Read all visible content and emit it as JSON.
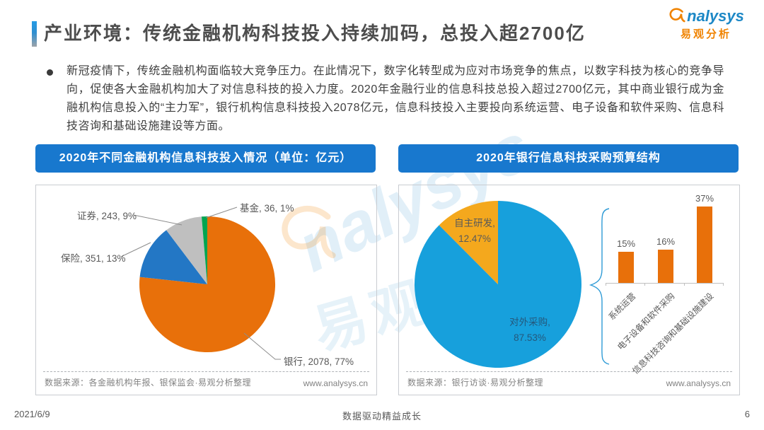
{
  "header": {
    "title": "产业环境：传统金融机构科技投入持续加码，总投入超2700亿",
    "logo": {
      "brand": "nalysys",
      "brand_cn": "易观分析"
    }
  },
  "intro": {
    "text": "新冠疫情下，传统金融机构面临较大竞争压力。在此情况下，数字化转型成为应对市场竞争的焦点，以数字科技为核心的竞争导向，促使各大金融机构加大了对信息科技的投入力度。2020年金融行业的信息科技总投入超过2700亿元，其中商业银行成为金融机构信息投入的“主力军”，银行机构信息科技投入2078亿元，信息科技投入主要投向系统运营、电子设备和软件采购、信息科技咨询和基础设施建设等方面。"
  },
  "panels": {
    "left": {
      "header": "2020年不同金融机构信息科技投入情况（单位：亿元）",
      "source": "数据来源：各金融机构年报、银保监会·易观分析整理",
      "website": "www.analysys.cn"
    },
    "right": {
      "header": "2020年银行信息科技采购预算结构",
      "source": "数据来源：银行访谈·易观分析整理",
      "website": "www.analysys.cn"
    }
  },
  "chart_data": [
    {
      "type": "pie",
      "title": "2020年不同金融机构信息科技投入情况（单位：亿元）",
      "labels": [
        "银行",
        "保险",
        "证券",
        "基金"
      ],
      "values": [
        2078,
        351,
        243,
        36
      ],
      "percents": [
        77,
        13,
        9,
        1
      ],
      "colors": [
        "#E8700A",
        "#2377C5",
        "#BFBFBF",
        "#00A550"
      ],
      "label_texts": [
        "银行, 2078, 77%",
        "保险, 351, 13%",
        "证券, 243, 9%",
        "基金, 36, 1%"
      ],
      "legend_position": "callout-labels",
      "start_angle": "top",
      "direction": "clockwise"
    },
    {
      "type": "pie",
      "title": "2020年银行信息科技采购预算结构",
      "labels": [
        "对外采购",
        "自主研发"
      ],
      "values": [
        87.53,
        12.47
      ],
      "colors": [
        "#17A0DC",
        "#F4A81D"
      ],
      "slice_label_lines": [
        [
          "对外采购,",
          "87.53%"
        ],
        [
          "自主研发,",
          "12.47%"
        ]
      ],
      "start_angle": "top",
      "direction": "clockwise"
    },
    {
      "type": "bar",
      "categories": [
        "系统运营",
        "电子设备和软件采购",
        "信息科技咨询和基础设施建设"
      ],
      "values": [
        15,
        16,
        37
      ],
      "value_labels": [
        "15%",
        "16%",
        "37%"
      ],
      "bar_color": "#E8700A",
      "ylim": [
        0,
        40
      ],
      "grid": false
    }
  ],
  "watermark": {
    "brand": "nalysys",
    "brand_cn": "易观"
  },
  "footer": {
    "date": "2021/6/9",
    "slogan": "数据驱动精益成长",
    "page": "6"
  }
}
